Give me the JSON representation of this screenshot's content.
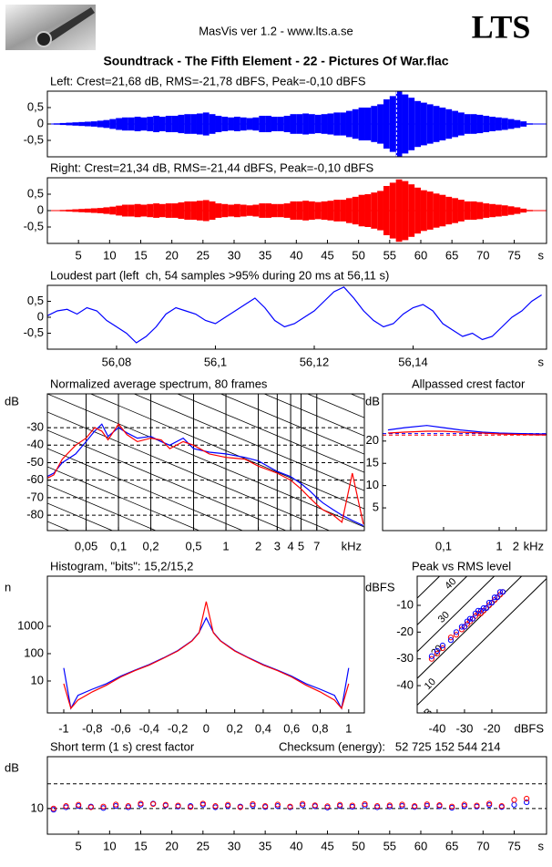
{
  "header": {
    "app": "MasVis ver 1.2 - www.lts.a.se",
    "logo": "LTS",
    "file": "Soundtrack - The Fifth Element - 22 - Pictures Of War.flac"
  },
  "chart_data": [
    {
      "type": "waveform",
      "title": "Left: Crest=21,68 dB, RMS=-21,78 dBFS, Peak=-0,10 dBFS",
      "color": "#0000ff",
      "xlim": [
        0,
        80.2
      ],
      "ylim": [
        -1,
        1
      ],
      "yticks": [
        {
          "value": 0.5,
          "label": "0,5"
        },
        0,
        {
          "value": -0.5,
          "label": "-0,5"
        }
      ],
      "marker_x": 56.11,
      "x": [
        0,
        1,
        2,
        3,
        4,
        5,
        6,
        7,
        8,
        9,
        10,
        11,
        12,
        13,
        14,
        15,
        16,
        17,
        18,
        19,
        20,
        21,
        22,
        23,
        24,
        25,
        26,
        27,
        28,
        29,
        30,
        31,
        32,
        33,
        34,
        35,
        36,
        37,
        38,
        39,
        40,
        41,
        42,
        43,
        44,
        45,
        46,
        47,
        48,
        49,
        50,
        51,
        52,
        53,
        54,
        55,
        56,
        57,
        58,
        59,
        60,
        61,
        62,
        63,
        64,
        65,
        66,
        67,
        68,
        69,
        70,
        71,
        72,
        73,
        74,
        75,
        76,
        77,
        78,
        79
      ],
      "series": [
        {
          "color": "#0000ff",
          "values": [
            0.01,
            0.02,
            0.03,
            0.04,
            0.05,
            0.06,
            0.07,
            0.08,
            0.1,
            0.12,
            0.15,
            0.18,
            0.2,
            0.2,
            0.22,
            0.2,
            0.22,
            0.25,
            0.22,
            0.25,
            0.25,
            0.28,
            0.3,
            0.3,
            0.32,
            0.35,
            0.3,
            0.25,
            0.22,
            0.2,
            0.22,
            0.2,
            0.18,
            0.2,
            0.25,
            0.25,
            0.22,
            0.22,
            0.25,
            0.3,
            0.3,
            0.32,
            0.3,
            0.28,
            0.3,
            0.32,
            0.35,
            0.35,
            0.4,
            0.45,
            0.5,
            0.5,
            0.55,
            0.6,
            0.75,
            0.85,
            1,
            0.9,
            0.8,
            0.7,
            0.65,
            0.6,
            0.55,
            0.5,
            0.45,
            0.4,
            0.35,
            0.3,
            0.3,
            0.28,
            0.25,
            0.22,
            0.2,
            0.18,
            0.15,
            0.12,
            0.08,
            0.02,
            0,
            0
          ]
        }
      ]
    },
    {
      "type": "waveform",
      "title": "Right: Crest=21,34 dB, RMS=-21,44 dBFS, Peak=-0,10 dBFS",
      "color": "#ff0000",
      "xlim": [
        0,
        80.2
      ],
      "ylim": [
        -1,
        1
      ],
      "yticks": [
        {
          "value": 0.5,
          "label": "0,5"
        },
        0,
        {
          "value": -0.5,
          "label": "-0,5"
        }
      ],
      "xticks": [
        5,
        10,
        15,
        20,
        25,
        30,
        35,
        40,
        45,
        50,
        55,
        60,
        65,
        70,
        75
      ],
      "x_unit": "s",
      "x": [
        0,
        1,
        2,
        3,
        4,
        5,
        6,
        7,
        8,
        9,
        10,
        11,
        12,
        13,
        14,
        15,
        16,
        17,
        18,
        19,
        20,
        21,
        22,
        23,
        24,
        25,
        26,
        27,
        28,
        29,
        30,
        31,
        32,
        33,
        34,
        35,
        36,
        37,
        38,
        39,
        40,
        41,
        42,
        43,
        44,
        45,
        46,
        47,
        48,
        49,
        50,
        51,
        52,
        53,
        54,
        55,
        56,
        57,
        58,
        59,
        60,
        61,
        62,
        63,
        64,
        65,
        66,
        67,
        68,
        69,
        70,
        71,
        72,
        73,
        74,
        75,
        76,
        77,
        78,
        79
      ],
      "series": [
        {
          "color": "#ff0000",
          "values": [
            0.01,
            0.01,
            0.02,
            0.03,
            0.04,
            0.05,
            0.06,
            0.07,
            0.08,
            0.1,
            0.12,
            0.15,
            0.18,
            0.18,
            0.2,
            0.18,
            0.2,
            0.22,
            0.2,
            0.22,
            0.22,
            0.25,
            0.28,
            0.28,
            0.3,
            0.32,
            0.28,
            0.22,
            0.2,
            0.18,
            0.2,
            0.18,
            0.16,
            0.18,
            0.22,
            0.22,
            0.2,
            0.2,
            0.22,
            0.28,
            0.28,
            0.3,
            0.28,
            0.26,
            0.28,
            0.3,
            0.33,
            0.33,
            0.38,
            0.42,
            0.48,
            0.5,
            0.55,
            0.6,
            0.75,
            0.85,
            0.95,
            0.9,
            0.8,
            0.7,
            0.62,
            0.58,
            0.52,
            0.48,
            0.42,
            0.38,
            0.33,
            0.28,
            0.28,
            0.26,
            0.22,
            0.2,
            0.18,
            0.16,
            0.13,
            0.1,
            0.06,
            0.02,
            0,
            0
          ]
        }
      ]
    },
    {
      "type": "line",
      "title": "Loudest part (left  ch, 54 samples >95% during 20 ms at 56,11 s)",
      "xlim": [
        56.066,
        56.167
      ],
      "ylim": [
        -1,
        1
      ],
      "yticks": [
        {
          "value": 0.5,
          "label": "0,5"
        },
        0,
        {
          "value": -0.5,
          "label": "-0,5"
        }
      ],
      "xticks": [
        {
          "value": 56.08,
          "label": "56,08"
        },
        {
          "value": 56.1,
          "label": "56,1"
        },
        {
          "value": 56.12,
          "label": "56,12"
        },
        {
          "value": 56.14,
          "label": "56,14"
        }
      ],
      "x_unit": "s",
      "x": [
        56.066,
        56.068,
        56.07,
        56.072,
        56.074,
        56.076,
        56.078,
        56.08,
        56.082,
        56.084,
        56.086,
        56.088,
        56.09,
        56.092,
        56.094,
        56.096,
        56.098,
        56.1,
        56.102,
        56.104,
        56.106,
        56.108,
        56.11,
        56.112,
        56.114,
        56.116,
        56.118,
        56.12,
        56.122,
        56.124,
        56.126,
        56.128,
        56.13,
        56.132,
        56.134,
        56.136,
        56.138,
        56.14,
        56.142,
        56.144,
        56.146,
        56.148,
        56.15,
        56.152,
        56.154,
        56.156,
        56.158,
        56.16,
        56.162,
        56.164,
        56.166
      ],
      "series": [
        {
          "color": "#0000ff",
          "values": [
            0.05,
            0.2,
            0.25,
            0.1,
            0.3,
            0.2,
            -0.1,
            -0.3,
            -0.5,
            -0.8,
            -0.6,
            -0.3,
            0.1,
            0.3,
            0.2,
            0.1,
            -0.1,
            -0.2,
            0,
            0.2,
            0.4,
            0.6,
            0.3,
            -0.1,
            -0.3,
            -0.2,
            0,
            0.2,
            0.5,
            0.8,
            0.95,
            0.6,
            0.2,
            -0.1,
            -0.3,
            -0.2,
            0.1,
            0.3,
            0.4,
            0.2,
            -0.2,
            -0.4,
            -0.6,
            -0.5,
            -0.7,
            -0.6,
            -0.3,
            0,
            0.2,
            0.5,
            0.7
          ]
        }
      ]
    },
    {
      "type": "line",
      "title": "Normalized average spectrum, 80 frames",
      "y_label": "dB",
      "x_unit": "kHz",
      "xlog": true,
      "xlim": [
        0.0218,
        19.4
      ],
      "ylim": [
        -88.8,
        -10.7
      ],
      "yticks": [
        -30,
        -40,
        -50,
        -60,
        -70,
        -80
      ],
      "ygrid": "dashed",
      "xgrid": "solid",
      "slope_lines": true,
      "xticks": [
        {
          "value": 0.05,
          "label": "0,05"
        },
        {
          "value": 0.1,
          "label": "0,1"
        },
        {
          "value": 0.2,
          "label": "0,2"
        },
        {
          "value": 0.5,
          "label": "0,5"
        },
        1,
        2,
        3,
        4,
        5,
        7
      ],
      "x": [
        0.02,
        0.025,
        0.03,
        0.04,
        0.05,
        0.06,
        0.07,
        0.08,
        0.1,
        0.12,
        0.15,
        0.2,
        0.25,
        0.3,
        0.4,
        0.5,
        0.7,
        1,
        1.5,
        2,
        3,
        4,
        5,
        6,
        7,
        8,
        10,
        12,
        15,
        19
      ],
      "series": [
        {
          "color": "#0000ff",
          "values": [
            -59,
            -56,
            -50,
            -45,
            -38,
            -32,
            -28,
            -35,
            -30,
            -33,
            -36,
            -35,
            -38,
            -40,
            -36,
            -42,
            -44,
            -45,
            -47,
            -49,
            -55,
            -58,
            -62,
            -66,
            -70,
            -73,
            -77,
            -80,
            -83,
            -86
          ]
        },
        {
          "color": "#ff0000",
          "values": [
            -60,
            -57,
            -48,
            -40,
            -36,
            -30,
            -32,
            -37,
            -28,
            -34,
            -38,
            -36,
            -37,
            -42,
            -38,
            -40,
            -45,
            -47,
            -48,
            -52,
            -56,
            -60,
            -65,
            -70,
            -74,
            -77,
            -80,
            -84,
            -56,
            -85
          ]
        }
      ]
    },
    {
      "type": "line",
      "title": "Allpassed crest factor",
      "y_label": "dB",
      "x_unit": "kHz",
      "xlog": true,
      "xlim": [
        0.008,
        7.1
      ],
      "ylim": [
        -0.1,
        30.6
      ],
      "yticks": [
        20,
        15,
        10,
        5
      ],
      "xticks": [
        {
          "value": 0.1,
          "label": "0,1"
        },
        1,
        2
      ],
      "reference_lines": [
        {
          "value": 21.68,
          "color": "#0000ff"
        },
        {
          "value": 21.34,
          "color": "#ff0000"
        }
      ],
      "x": [
        0.01,
        0.02,
        0.05,
        0.1,
        0.2,
        0.5,
        1,
        2,
        5,
        7
      ],
      "series": [
        {
          "color": "#0000ff",
          "values": [
            22.5,
            23,
            23.5,
            23,
            22.5,
            22,
            21.8,
            21.7,
            21.6,
            21.6
          ]
        },
        {
          "color": "#ff0000",
          "values": [
            21.8,
            22,
            22.2,
            22.2,
            22,
            21.8,
            21.6,
            21.5,
            21.4,
            21.4
          ]
        }
      ]
    },
    {
      "type": "line",
      "title": "Histogram, \"bits\": 15,2/15,2",
      "y_label": "n",
      "ylog": true,
      "xlim": [
        -1.115,
        1.11
      ],
      "ylim": [
        0.68,
        68000
      ],
      "yticks": [
        1000,
        100,
        10
      ],
      "xticks": [
        -1,
        {
          "value": -0.8,
          "label": "-0,8"
        },
        {
          "value": -0.6,
          "label": "-0,6"
        },
        {
          "value": -0.4,
          "label": "-0,4"
        },
        {
          "value": -0.2,
          "label": "-0,2"
        },
        0,
        {
          "value": 0.2,
          "label": "0,2"
        },
        {
          "value": 0.4,
          "label": "0,4"
        },
        {
          "value": 0.6,
          "label": "0,6"
        },
        {
          "value": 0.8,
          "label": "0,8"
        },
        1
      ],
      "x": [
        -1,
        -0.95,
        -0.9,
        -0.8,
        -0.7,
        -0.6,
        -0.5,
        -0.4,
        -0.3,
        -0.2,
        -0.1,
        -0.05,
        0,
        0.05,
        0.1,
        0.2,
        0.3,
        0.4,
        0.5,
        0.6,
        0.7,
        0.8,
        0.9,
        0.95,
        1
      ],
      "series": [
        {
          "color": "#0000ff",
          "values": [
            30,
            1,
            3,
            5,
            8,
            15,
            25,
            40,
            70,
            130,
            300,
            600,
            2000,
            600,
            300,
            130,
            70,
            40,
            25,
            15,
            8,
            5,
            3,
            1,
            30
          ]
        },
        {
          "color": "#ff0000",
          "values": [
            8,
            1,
            2,
            4,
            7,
            14,
            24,
            38,
            68,
            125,
            290,
            580,
            8000,
            580,
            290,
            125,
            68,
            38,
            24,
            14,
            7,
            4,
            2,
            1,
            8
          ]
        }
      ]
    },
    {
      "type": "scatter",
      "title": "Peak vs RMS level",
      "y_label": "dBFS",
      "x_unit": "dBFS",
      "xlim": [
        -47.3,
        0
      ],
      "ylim": [
        -50.2,
        0.9
      ],
      "yticks": [
        -10,
        -20,
        -30,
        -40
      ],
      "xticks": [
        -40,
        -30,
        -20
      ],
      "crest_lines": [
        {
          "value": 0,
          "label": "0 dB"
        },
        {
          "value": 10,
          "label": "10"
        },
        {
          "value": 20,
          "label": "20"
        },
        {
          "value": 30,
          "label": "30"
        },
        {
          "value": 40,
          "label": "40"
        }
      ],
      "x": [
        -42,
        -40,
        -38,
        -35,
        -33,
        -31,
        -30,
        -29,
        -28,
        -27,
        -26,
        -25,
        -24,
        -23,
        -22,
        -21,
        -20,
        -19,
        -18,
        -17,
        -16
      ],
      "series": [
        {
          "color": "#ff0000",
          "values": [
            -30,
            -28,
            -26,
            -22,
            -21,
            -19,
            -18,
            -17,
            -16,
            -15,
            -14,
            -13,
            -13,
            -12,
            -11,
            -10,
            -9,
            -8,
            -7,
            -6,
            -5
          ]
        },
        {
          "color": "#0000ff",
          "values": [
            -29,
            -27,
            -25,
            -23,
            -20,
            -18,
            -18,
            -16,
            -15,
            -15,
            -13,
            -12,
            -12,
            -11,
            -11,
            -9,
            -9,
            -7,
            -7,
            -5,
            -5
          ]
        }
      ]
    },
    {
      "type": "scatter",
      "title": "Short term (1 s) crest factor",
      "note": "Checksum (energy):   52 725 152 544 214",
      "y_label": "dB",
      "x_unit": "s",
      "xlim": [
        0,
        80.2
      ],
      "ylim": [
        -0.4,
        31
      ],
      "yticks": [
        10
      ],
      "xticks": [
        5,
        10,
        15,
        20,
        25,
        30,
        35,
        40,
        45,
        50,
        55,
        60,
        65,
        70,
        75
      ],
      "reference_lines": [
        {
          "value": 10,
          "color": "#000000"
        },
        {
          "value": 20,
          "color": "#000000"
        }
      ],
      "x": [
        1,
        3,
        5,
        7,
        9,
        11,
        13,
        15,
        17,
        19,
        21,
        23,
        25,
        27,
        29,
        31,
        33,
        35,
        37,
        39,
        41,
        43,
        45,
        47,
        49,
        51,
        53,
        55,
        57,
        59,
        61,
        63,
        65,
        67,
        69,
        71,
        73,
        75,
        77
      ],
      "series": [
        {
          "color": "#0000ff",
          "values": [
            9.5,
            10.5,
            11,
            10.8,
            10.2,
            11,
            10.5,
            11.5,
            12,
            11.2,
            10.8,
            11,
            11.5,
            10.5,
            11,
            10.8,
            11.2,
            10.6,
            11,
            10.5,
            11.3,
            10.9,
            10.4,
            11,
            10.7,
            11.2,
            10.5,
            10.8,
            11,
            10.6,
            11.1,
            10.9,
            10.3,
            11,
            10.8,
            11.4,
            10.6,
            11.5,
            12.5
          ]
        },
        {
          "color": "#ff0000",
          "values": [
            10,
            11,
            11.5,
            10.5,
            10.8,
            11.6,
            11,
            12,
            11.8,
            11.5,
            11.2,
            10.6,
            12,
            11,
            11.5,
            10.5,
            11.8,
            11,
            11.6,
            10.8,
            11.9,
            11.3,
            10.9,
            11.5,
            11.2,
            11.8,
            11,
            11.3,
            11.6,
            11,
            11.7,
            11.4,
            10.8,
            11.6,
            11.2,
            12,
            11,
            13.5,
            14
          ]
        }
      ]
    }
  ]
}
